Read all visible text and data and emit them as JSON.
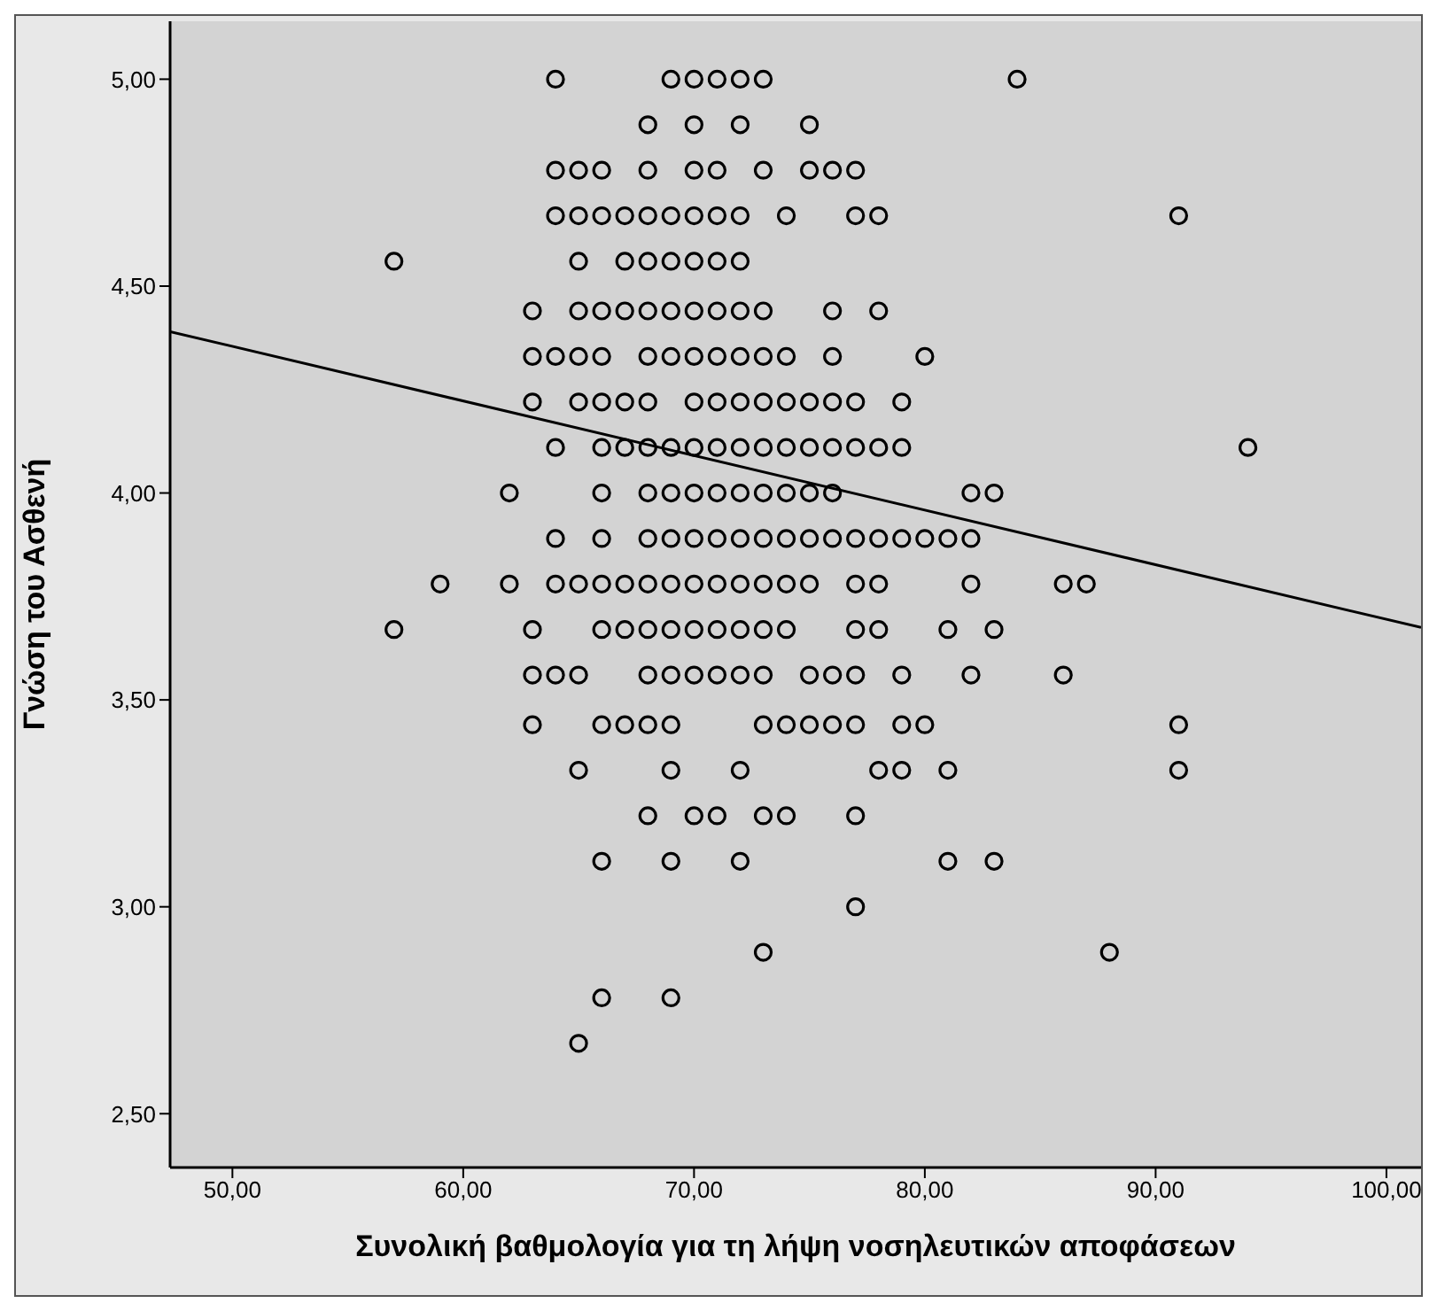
{
  "chart_data": {
    "type": "scatter",
    "xlabel": "Συνολική βαθμολογία για τη λήψη νοσηλευτικών αποφάσεων",
    "ylabel": "Γνώση του Ασθενή",
    "xlim": [
      47.3,
      101.5
    ],
    "ylim": [
      2.37,
      5.14
    ],
    "xticks": [
      {
        "value": 50,
        "label": "50,00"
      },
      {
        "value": 60,
        "label": "60,00"
      },
      {
        "value": 70,
        "label": "70,00"
      },
      {
        "value": 80,
        "label": "80,00"
      },
      {
        "value": 90,
        "label": "90,00"
      },
      {
        "value": 100,
        "label": "100,00"
      }
    ],
    "yticks": [
      {
        "value": 2.5,
        "label": "2,50"
      },
      {
        "value": 3,
        "label": "3,00"
      },
      {
        "value": 3.5,
        "label": "3,50"
      },
      {
        "value": 4,
        "label": "4,00"
      },
      {
        "value": 4.5,
        "label": "4,50"
      },
      {
        "value": 5,
        "label": "5,00"
      }
    ],
    "series": [
      {
        "color": "#000000",
        "marker": "circle",
        "x": [
          64,
          69,
          70,
          71,
          72,
          73,
          84,
          68,
          70,
          72,
          75,
          64,
          65,
          66,
          68,
          70,
          71,
          73,
          75,
          76,
          77,
          64,
          65,
          66,
          67,
          68,
          69,
          70,
          71,
          72,
          74,
          77,
          78,
          91,
          57,
          65,
          67,
          68,
          69,
          70,
          71,
          72,
          63,
          65,
          66,
          67,
          68,
          69,
          70,
          71,
          72,
          73,
          76,
          78,
          63,
          64,
          65,
          66,
          68,
          69,
          70,
          71,
          72,
          73,
          74,
          76,
          80,
          63,
          65,
          66,
          67,
          68,
          70,
          71,
          72,
          73,
          74,
          75,
          76,
          77,
          79,
          64,
          66,
          67,
          68,
          69,
          70,
          71,
          72,
          73,
          74,
          75,
          76,
          77,
          78,
          79,
          94,
          62,
          66,
          68,
          69,
          70,
          71,
          72,
          73,
          74,
          75,
          76,
          82,
          83,
          64,
          66,
          68,
          69,
          70,
          71,
          72,
          73,
          74,
          75,
          76,
          77,
          78,
          79,
          80,
          81,
          82,
          59,
          62,
          64,
          65,
          66,
          67,
          68,
          69,
          70,
          71,
          72,
          73,
          74,
          75,
          77,
          78,
          82,
          86,
          87,
          57,
          63,
          66,
          67,
          68,
          69,
          70,
          71,
          72,
          73,
          74,
          77,
          78,
          81,
          83,
          63,
          64,
          65,
          68,
          69,
          70,
          71,
          72,
          73,
          75,
          76,
          77,
          79,
          82,
          86,
          63,
          66,
          67,
          68,
          69,
          73,
          74,
          75,
          76,
          77,
          79,
          80,
          91,
          65,
          69,
          72,
          78,
          79,
          81,
          91,
          68,
          70,
          71,
          73,
          74,
          77,
          66,
          69,
          72,
          81,
          83,
          77,
          73,
          88,
          66,
          69,
          65
        ],
        "values": [
          5,
          5,
          5,
          5,
          5,
          5,
          5,
          4.89,
          4.89,
          4.89,
          4.89,
          4.78,
          4.78,
          4.78,
          4.78,
          4.78,
          4.78,
          4.78,
          4.78,
          4.78,
          4.78,
          4.67,
          4.67,
          4.67,
          4.67,
          4.67,
          4.67,
          4.67,
          4.67,
          4.67,
          4.67,
          4.67,
          4.67,
          4.67,
          4.56,
          4.56,
          4.56,
          4.56,
          4.56,
          4.56,
          4.56,
          4.56,
          4.44,
          4.44,
          4.44,
          4.44,
          4.44,
          4.44,
          4.44,
          4.44,
          4.44,
          4.44,
          4.44,
          4.44,
          4.33,
          4.33,
          4.33,
          4.33,
          4.33,
          4.33,
          4.33,
          4.33,
          4.33,
          4.33,
          4.33,
          4.33,
          4.33,
          4.22,
          4.22,
          4.22,
          4.22,
          4.22,
          4.22,
          4.22,
          4.22,
          4.22,
          4.22,
          4.22,
          4.22,
          4.22,
          4.22,
          4.11,
          4.11,
          4.11,
          4.11,
          4.11,
          4.11,
          4.11,
          4.11,
          4.11,
          4.11,
          4.11,
          4.11,
          4.11,
          4.11,
          4.11,
          4.11,
          4,
          4,
          4,
          4,
          4,
          4,
          4,
          4,
          4,
          4,
          4,
          4,
          4,
          3.89,
          3.89,
          3.89,
          3.89,
          3.89,
          3.89,
          3.89,
          3.89,
          3.89,
          3.89,
          3.89,
          3.89,
          3.89,
          3.89,
          3.89,
          3.89,
          3.89,
          3.78,
          3.78,
          3.78,
          3.78,
          3.78,
          3.78,
          3.78,
          3.78,
          3.78,
          3.78,
          3.78,
          3.78,
          3.78,
          3.78,
          3.78,
          3.78,
          3.78,
          3.78,
          3.78,
          3.67,
          3.67,
          3.67,
          3.67,
          3.67,
          3.67,
          3.67,
          3.67,
          3.67,
          3.67,
          3.67,
          3.67,
          3.67,
          3.67,
          3.67,
          3.56,
          3.56,
          3.56,
          3.56,
          3.56,
          3.56,
          3.56,
          3.56,
          3.56,
          3.56,
          3.56,
          3.56,
          3.56,
          3.56,
          3.56,
          3.44,
          3.44,
          3.44,
          3.44,
          3.44,
          3.44,
          3.44,
          3.44,
          3.44,
          3.44,
          3.44,
          3.44,
          3.44,
          3.33,
          3.33,
          3.33,
          3.33,
          3.33,
          3.33,
          3.33,
          3.22,
          3.22,
          3.22,
          3.22,
          3.22,
          3.22,
          3.11,
          3.11,
          3.11,
          3.11,
          3.11,
          3,
          2.89,
          2.89,
          2.78,
          2.78,
          2.67
        ]
      },
      {
        "type": "line",
        "color": "#000000",
        "line_style": "solid",
        "marker": "none",
        "x": [
          47.3,
          101.5
        ],
        "values": [
          4.39,
          3.675
        ]
      }
    ]
  }
}
